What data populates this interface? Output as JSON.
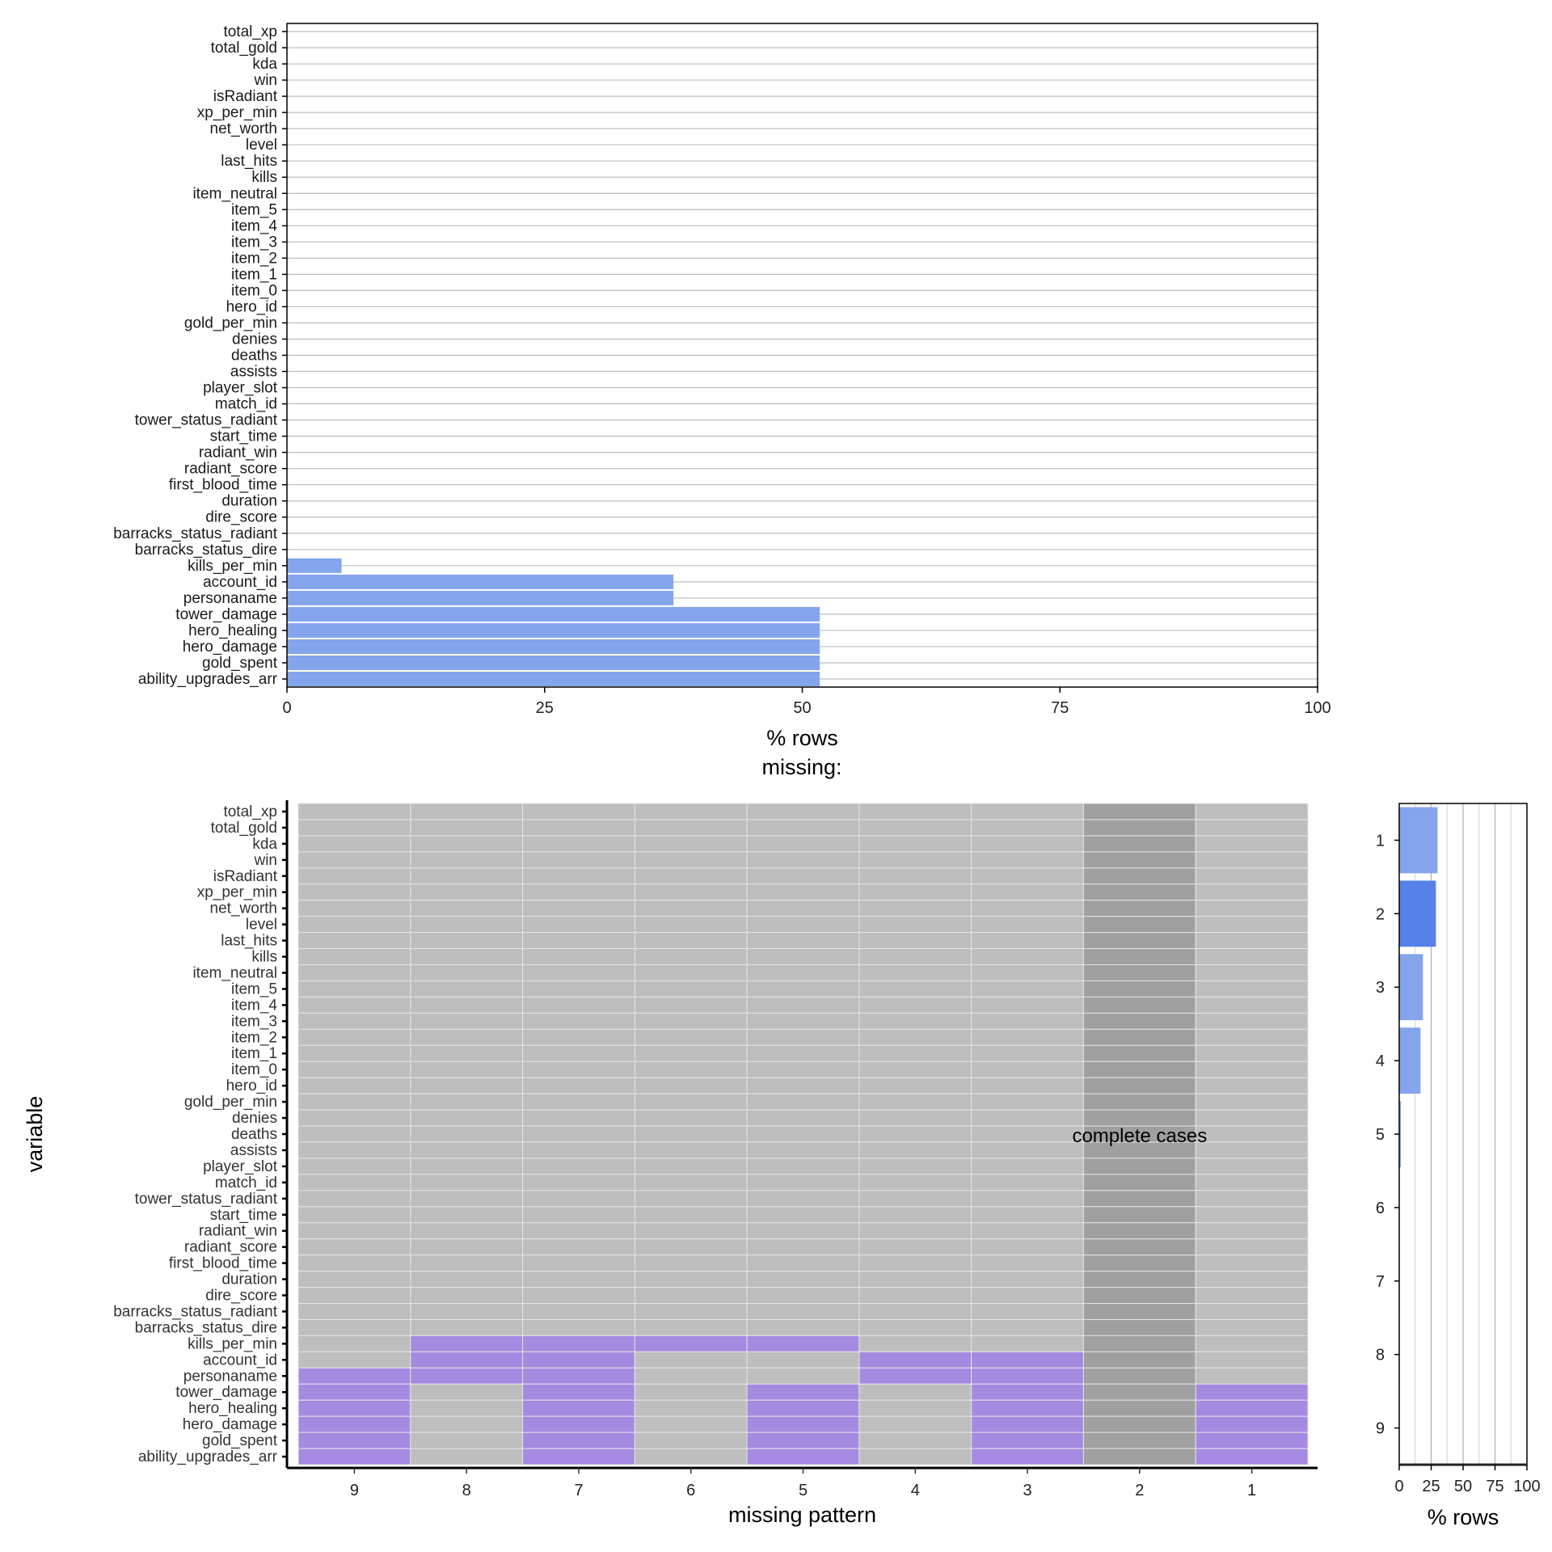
{
  "chart_data": [
    {
      "type": "bar",
      "orientation": "horizontal",
      "categories": [
        "total_xp",
        "total_gold",
        "kda",
        "win",
        "isRadiant",
        "xp_per_min",
        "net_worth",
        "level",
        "last_hits",
        "kills",
        "item_neutral",
        "item_5",
        "item_4",
        "item_3",
        "item_2",
        "item_1",
        "item_0",
        "hero_id",
        "gold_per_min",
        "denies",
        "deaths",
        "assists",
        "player_slot",
        "match_id",
        "tower_status_radiant",
        "start_time",
        "radiant_win",
        "radiant_score",
        "first_blood_time",
        "duration",
        "dire_score",
        "barracks_status_radiant",
        "barracks_status_dire",
        "kills_per_min",
        "account_id",
        "personaname",
        "tower_damage",
        "hero_healing",
        "hero_damage",
        "gold_spent",
        "ability_upgrades_arr"
      ],
      "values": [
        0,
        0,
        0,
        0,
        0,
        0,
        0,
        0,
        0,
        0,
        0,
        0,
        0,
        0,
        0,
        0,
        0,
        0,
        0,
        0,
        0,
        0,
        0,
        0,
        0,
        0,
        0,
        0,
        0,
        0,
        0,
        0,
        0,
        5.3,
        37.5,
        37.5,
        51.7,
        51.7,
        51.7,
        51.7,
        51.7
      ],
      "xlabel": "% rows",
      "ylabel": "",
      "xlim": [
        0,
        100
      ],
      "xticks": [
        "0",
        "25",
        "50",
        "75",
        "100"
      ],
      "grid": "horizontal",
      "color": "#84a4ec"
    },
    {
      "type": "heatmap",
      "title": "missing:",
      "xlabel": "missing pattern",
      "ylabel": "variable",
      "patterns": [
        "9",
        "8",
        "7",
        "6",
        "5",
        "4",
        "3",
        "2",
        "1"
      ],
      "complete_pattern": "2",
      "annotation": "complete cases",
      "missing_by_variable": {
        "kills_per_min": [
          "8",
          "7",
          "6",
          "5"
        ],
        "account_id": [
          "8",
          "7",
          "4",
          "3"
        ],
        "personaname": [
          "9",
          "8",
          "7",
          "4",
          "3"
        ],
        "tower_damage": [
          "9",
          "7",
          "5",
          "3",
          "1"
        ],
        "hero_healing": [
          "9",
          "7",
          "5",
          "3",
          "1"
        ],
        "hero_damage": [
          "9",
          "7",
          "5",
          "3",
          "1"
        ],
        "gold_spent": [
          "9",
          "7",
          "5",
          "3",
          "1"
        ],
        "ability_upgrades_arr": [
          "9",
          "7",
          "5",
          "3",
          "1"
        ]
      },
      "colors": {
        "missing": "#a68ae2",
        "present": "#bebebe",
        "complete": "#a0a0a0"
      }
    },
    {
      "type": "bar",
      "orientation": "horizontal",
      "categories": [
        "1",
        "2",
        "3",
        "4",
        "5",
        "6",
        "7",
        "8",
        "9"
      ],
      "values": [
        30.0,
        28.7,
        18.6,
        16.7,
        1.3,
        0.3,
        0.2,
        0.05,
        0.05
      ],
      "highlight": "2",
      "xlabel": "% rows",
      "xlim": [
        0,
        100
      ],
      "xticks": [
        "0",
        "25",
        "50",
        "75",
        "100"
      ],
      "colors": {
        "bar": "#84a4ec",
        "highlight": "#5581e8"
      }
    }
  ]
}
